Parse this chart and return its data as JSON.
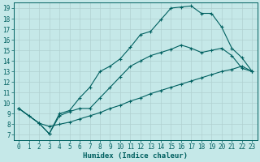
{
  "xlabel": "Humidex (Indice chaleur)",
  "background_color": "#c5e8e8",
  "grid_color": "#b0d0d0",
  "line_color": "#006060",
  "xlim": [
    -0.5,
    23.5
  ],
  "ylim": [
    6.5,
    19.5
  ],
  "xticks": [
    0,
    1,
    2,
    3,
    4,
    5,
    6,
    7,
    8,
    9,
    10,
    11,
    12,
    13,
    14,
    15,
    16,
    17,
    18,
    19,
    20,
    21,
    22,
    23
  ],
  "yticks": [
    7,
    8,
    9,
    10,
    11,
    12,
    13,
    14,
    15,
    16,
    17,
    18,
    19
  ],
  "line1_x": [
    0,
    1,
    2,
    3,
    4,
    5,
    6,
    7,
    8,
    9,
    10,
    11,
    12,
    13,
    14,
    15,
    16,
    17,
    18,
    19,
    20,
    21,
    22,
    23
  ],
  "line1_y": [
    9.5,
    8.8,
    8.1,
    7.1,
    9.0,
    9.3,
    10.5,
    11.5,
    13.0,
    13.5,
    14.2,
    15.3,
    16.5,
    16.8,
    17.9,
    19.0,
    19.1,
    19.2,
    18.5,
    18.5,
    17.2,
    15.2,
    14.3,
    13.0
  ],
  "line2_x": [
    0,
    2,
    3,
    4,
    5,
    6,
    7,
    8,
    9,
    10,
    11,
    12,
    13,
    14,
    15,
    16,
    17,
    18,
    19,
    20,
    21,
    22,
    23
  ],
  "line2_y": [
    9.5,
    8.1,
    7.1,
    8.8,
    9.2,
    9.5,
    9.5,
    10.5,
    11.5,
    12.5,
    13.5,
    14.0,
    14.5,
    14.8,
    15.1,
    15.5,
    15.2,
    14.8,
    15.0,
    15.2,
    14.5,
    13.3,
    13.0
  ],
  "line3_x": [
    0,
    2,
    3,
    4,
    5,
    6,
    7,
    8,
    9,
    10,
    11,
    12,
    13,
    14,
    15,
    16,
    17,
    18,
    19,
    20,
    21,
    22,
    23
  ],
  "line3_y": [
    9.5,
    8.1,
    7.8,
    8.0,
    8.2,
    8.5,
    8.8,
    9.1,
    9.5,
    9.8,
    10.2,
    10.5,
    10.9,
    11.2,
    11.5,
    11.8,
    12.1,
    12.4,
    12.7,
    13.0,
    13.2,
    13.5,
    13.0
  ],
  "tick_fontsize": 5.5,
  "xlabel_fontsize": 6.5
}
